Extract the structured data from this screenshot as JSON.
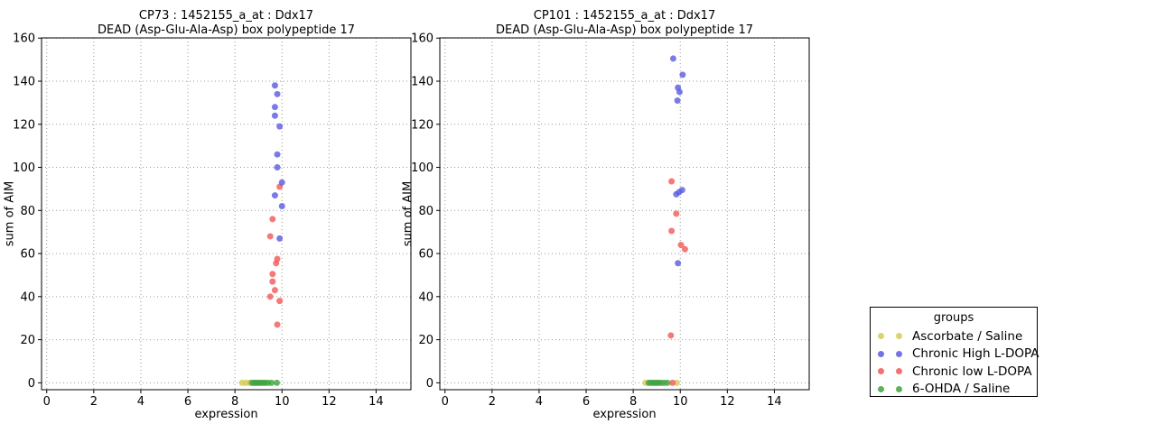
{
  "colors": {
    "ascorbate": "#d2cc55",
    "chronic_high": "#5a5ae2",
    "chronic_low": "#f25858",
    "ohda": "#3fa33f",
    "grid": "#999999",
    "axis": "#000000"
  },
  "legend": {
    "title": "groups",
    "entries": [
      {
        "label": "Ascorbate / Saline",
        "color_key": "ascorbate"
      },
      {
        "label": "Chronic High L-DOPA",
        "color_key": "chronic_high"
      },
      {
        "label": "Chronic low L-DOPA",
        "color_key": "chronic_low"
      },
      {
        "label": "6-OHDA / Saline",
        "color_key": "ohda"
      }
    ]
  },
  "chart_data": [
    {
      "type": "scatter",
      "title_line1": "CP73 : 1452155_a_at : Ddx17",
      "title_line2": "DEAD (Asp-Glu-Ala-Asp) box polypeptide 17",
      "xlabel": "expression",
      "ylabel": "sum of AIM",
      "xlim": [
        -0.22,
        15.48
      ],
      "ylim": [
        -3.2,
        160.1
      ],
      "xticks": [
        0,
        2,
        4,
        6,
        8,
        10,
        12,
        14
      ],
      "yticks": [
        0,
        20,
        40,
        60,
        80,
        100,
        120,
        140,
        160
      ],
      "grid": true,
      "series": [
        {
          "name": "Ascorbate / Saline",
          "color_key": "ascorbate",
          "points": [
            [
              8.3,
              0
            ],
            [
              8.45,
              0
            ],
            [
              8.6,
              0
            ]
          ]
        },
        {
          "name": "6-OHDA / Saline",
          "color_key": "ohda",
          "points": [
            [
              8.72,
              0
            ],
            [
              8.82,
              0
            ],
            [
              8.9,
              0
            ],
            [
              8.98,
              0
            ],
            [
              9.08,
              0
            ],
            [
              9.18,
              0
            ],
            [
              9.28,
              0
            ],
            [
              9.4,
              0
            ],
            [
              9.55,
              0
            ],
            [
              9.78,
              0
            ]
          ]
        },
        {
          "name": "Chronic low L-DOPA",
          "color_key": "chronic_low",
          "points": [
            [
              9.9,
              91
            ],
            [
              9.6,
              76
            ],
            [
              9.5,
              68
            ],
            [
              9.8,
              57.5
            ],
            [
              9.75,
              55.5
            ],
            [
              9.6,
              50.5
            ],
            [
              9.6,
              47
            ],
            [
              9.7,
              43
            ],
            [
              9.5,
              40
            ],
            [
              9.9,
              38
            ],
            [
              9.8,
              27
            ]
          ]
        },
        {
          "name": "Chronic High L-DOPA",
          "color_key": "chronic_high",
          "points": [
            [
              9.7,
              138
            ],
            [
              9.8,
              134
            ],
            [
              9.7,
              128
            ],
            [
              9.7,
              124
            ],
            [
              9.9,
              119
            ],
            [
              9.8,
              106
            ],
            [
              9.8,
              100
            ],
            [
              10.0,
              93
            ],
            [
              9.7,
              87
            ],
            [
              10.0,
              82
            ],
            [
              9.9,
              67
            ]
          ]
        }
      ]
    },
    {
      "type": "scatter",
      "title_line1": "CP101 : 1452155_a_at : Ddx17",
      "title_line2": "DEAD (Asp-Glu-Ala-Asp) box polypeptide 17",
      "xlabel": "expression",
      "ylabel": "sum of AIM",
      "xlim": [
        -0.22,
        15.48
      ],
      "ylim": [
        -3.2,
        160.1
      ],
      "xticks": [
        0,
        2,
        4,
        6,
        8,
        10,
        12,
        14
      ],
      "yticks": [
        0,
        20,
        40,
        60,
        80,
        100,
        120,
        140,
        160
      ],
      "grid": true,
      "series": [
        {
          "name": "Ascorbate / Saline",
          "color_key": "ascorbate",
          "points": [
            [
              8.52,
              0
            ],
            [
              9.85,
              0
            ]
          ]
        },
        {
          "name": "6-OHDA / Saline",
          "color_key": "ohda",
          "points": [
            [
              8.66,
              0
            ],
            [
              8.76,
              0
            ],
            [
              8.86,
              0
            ],
            [
              8.96,
              0
            ],
            [
              9.06,
              0
            ],
            [
              9.16,
              0
            ],
            [
              9.3,
              0
            ],
            [
              9.45,
              0
            ]
          ]
        },
        {
          "name": "Chronic low L-DOPA",
          "color_key": "chronic_low",
          "points": [
            [
              9.63,
              93.5
            ],
            [
              9.83,
              78.5
            ],
            [
              9.63,
              70.5
            ],
            [
              10.03,
              64
            ],
            [
              10.2,
              62
            ],
            [
              9.6,
              22
            ],
            [
              9.67,
              0
            ]
          ]
        },
        {
          "name": "Chronic High L-DOPA",
          "color_key": "chronic_high",
          "points": [
            [
              9.7,
              150.5
            ],
            [
              10.1,
              143
            ],
            [
              9.9,
              137
            ],
            [
              9.97,
              135
            ],
            [
              9.88,
              131
            ],
            [
              9.83,
              87.5
            ],
            [
              9.95,
              88.5
            ],
            [
              10.08,
              89.5
            ],
            [
              9.9,
              55.5
            ]
          ]
        }
      ]
    }
  ]
}
